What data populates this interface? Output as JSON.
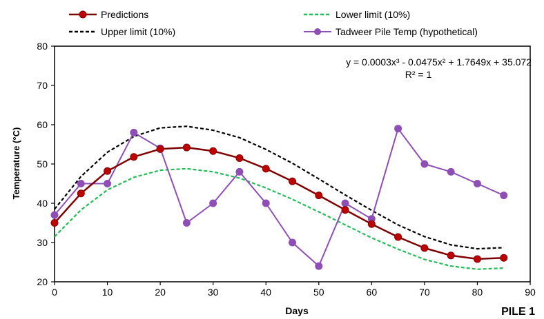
{
  "chart_data": {
    "type": "line",
    "xlabel": "Days",
    "ylabel": "Temperature (°C)",
    "xlim": [
      0,
      90
    ],
    "ylim": [
      20,
      80
    ],
    "xticks": [
      "0",
      "10",
      "20",
      "30",
      "40",
      "50",
      "60",
      "70",
      "80",
      "90"
    ],
    "yticks": [
      "20",
      "30",
      "40",
      "50",
      "60",
      "70",
      "80"
    ],
    "grid": false,
    "legend_placement": "top",
    "panel_label": "PILE 1",
    "annotation": {
      "equation": "y = 0.0003x³ - 0.0475x² + 1.7649x + 35.072",
      "r2": "R² = 1"
    },
    "series": [
      {
        "name": "Predictions",
        "color": "#c00000",
        "line_color": "#7f0000",
        "style": "solid",
        "marker": "circle",
        "x": [
          0,
          5,
          10,
          15,
          20,
          25,
          30,
          35,
          40,
          45,
          50,
          55,
          60,
          65,
          70,
          75,
          80,
          85
        ],
        "y": [
          35,
          42.5,
          48.2,
          51.8,
          53.8,
          54.2,
          53.3,
          51.5,
          48.8,
          45.6,
          42.0,
          38.3,
          34.7,
          31.4,
          28.6,
          26.7,
          25.8,
          26.1
        ]
      },
      {
        "name": "Lower limit (10%)",
        "color": "#22bb55",
        "style": "dashed",
        "marker": "none",
        "x": [
          0,
          5,
          10,
          15,
          20,
          25,
          30,
          35,
          40,
          45,
          50,
          55,
          60,
          65,
          70,
          75,
          80,
          85
        ],
        "y": [
          31.5,
          38.3,
          43.4,
          46.6,
          48.4,
          48.8,
          48.0,
          46.4,
          43.9,
          41.0,
          37.8,
          34.5,
          31.2,
          28.3,
          25.7,
          24.0,
          23.2,
          23.5
        ]
      },
      {
        "name": "Upper limit (10%)",
        "color": "#000000",
        "style": "dashed",
        "marker": "none",
        "x": [
          0,
          5,
          10,
          15,
          20,
          25,
          30,
          35,
          40,
          45,
          50,
          55,
          60,
          65,
          70,
          75,
          80,
          85
        ],
        "y": [
          38.5,
          46.8,
          53.0,
          57.0,
          59.2,
          59.6,
          58.6,
          56.7,
          53.7,
          50.2,
          46.2,
          42.1,
          38.2,
          34.5,
          31.5,
          29.4,
          28.4,
          28.7
        ]
      },
      {
        "name": "Tadweer Pile Temp (hypothetical)",
        "color": "#8e4fb5",
        "style": "solid",
        "marker": "circle",
        "x": [
          0,
          5,
          10,
          15,
          20,
          25,
          30,
          35,
          40,
          45,
          50,
          55,
          60,
          65,
          70,
          75,
          80,
          85
        ],
        "y": [
          37,
          45,
          45,
          58,
          54,
          35,
          40,
          48,
          40,
          30,
          24,
          40,
          36,
          59,
          50,
          48,
          45,
          42
        ]
      }
    ]
  }
}
